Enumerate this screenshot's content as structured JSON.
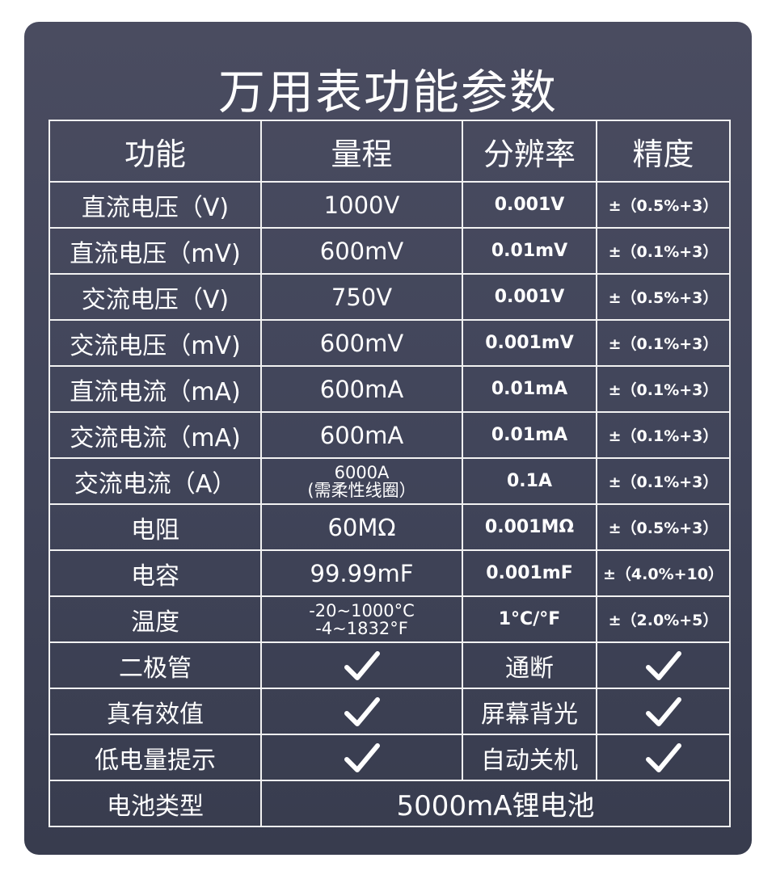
{
  "title": "万用表功能参数",
  "headers": [
    "功能",
    "量程",
    "分辨率",
    "精度"
  ],
  "rows": [
    {
      "type": "spec",
      "cells": [
        "直流电压（V)",
        "1000V",
        "0.001V",
        "±（0.5%+3）"
      ]
    },
    {
      "type": "spec",
      "cells": [
        "直流电压（mV)",
        "600mV",
        "0.01mV",
        "±（0.1%+3）"
      ]
    },
    {
      "type": "spec",
      "cells": [
        "交流电压（V)",
        "750V",
        "0.001V",
        "±（0.5%+3）"
      ]
    },
    {
      "type": "spec",
      "cells": [
        "交流电压（mV)",
        "600mV",
        "0.001mV",
        "±（0.1%+3）"
      ]
    },
    {
      "type": "spec",
      "cells": [
        "直流电流（mA)",
        "600mA",
        "0.01mA",
        "±（0.1%+3）"
      ]
    },
    {
      "type": "spec",
      "cells": [
        "交流电流（mA)",
        "600mA",
        "0.01mA",
        "±（0.1%+3）"
      ]
    },
    {
      "type": "spec",
      "cells": [
        "交流电流（A）",
        "6000A\n(需柔性线圈）",
        "0.1A",
        "±（0.1%+3）"
      ],
      "small_range": true
    },
    {
      "type": "spec",
      "cells": [
        "电阻",
        "60MΩ",
        "0.001MΩ",
        "±（0.5%+3）"
      ]
    },
    {
      "type": "spec",
      "cells": [
        "电容",
        "99.99mF",
        "0.001mF",
        "±（4.0%+10）"
      ]
    },
    {
      "type": "spec",
      "cells": [
        "温度",
        "-20~1000°C\n-4~1832°F",
        "1°C/°F",
        "±（2.0%+5）"
      ],
      "small_range": true
    },
    {
      "type": "feature",
      "cells": [
        "二极管",
        "通断"
      ],
      "supported": [
        true,
        true
      ]
    },
    {
      "type": "feature",
      "cells": [
        "真有效值",
        "屏幕背光"
      ],
      "supported": [
        true,
        true
      ]
    },
    {
      "type": "feature",
      "cells": [
        "低电量提示",
        "自动关机"
      ],
      "supported": [
        true,
        true
      ]
    },
    {
      "type": "battery",
      "cells": [
        "电池类型",
        "5000mA锂电池"
      ]
    }
  ],
  "icons": {
    "check": "checkmark-icon"
  },
  "colors": {
    "background_top": "#4a4c60",
    "background_bottom": "#383c4e",
    "text": "#ffffff",
    "grid": "#f2f2f2"
  }
}
